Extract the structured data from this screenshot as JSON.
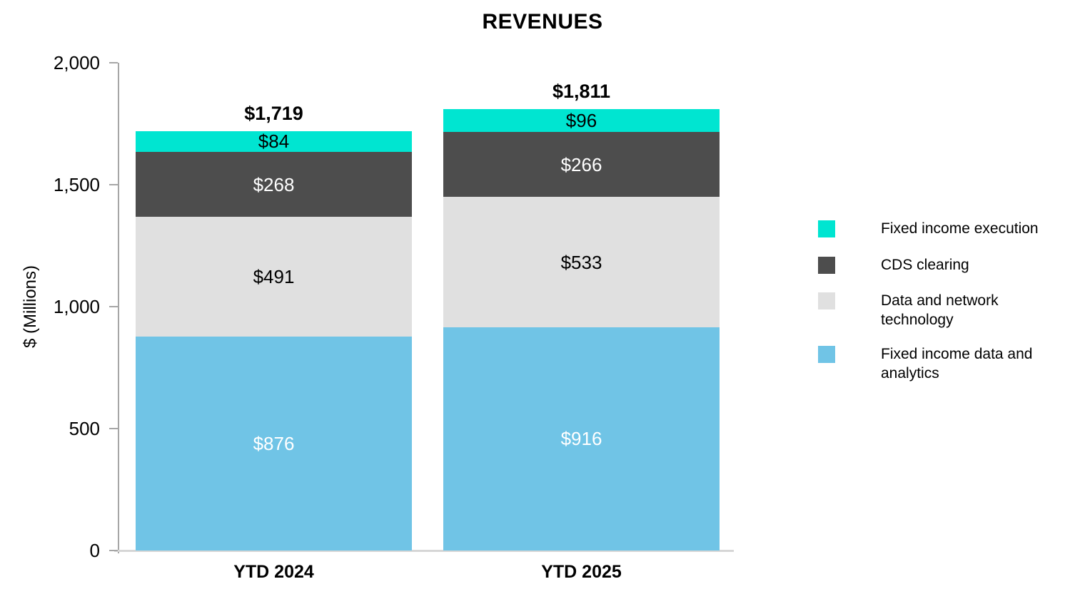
{
  "chart_data": {
    "type": "bar",
    "stacked": true,
    "title": "REVENUES",
    "ylabel": "$ (Millions)",
    "xlabel": "",
    "ylim": [
      0,
      2000
    ],
    "grid": false,
    "legend_position": "right",
    "categories": [
      "YTD 2024",
      "YTD 2025"
    ],
    "totals": [
      1719,
      1811
    ],
    "total_labels": [
      "$1,719",
      "$1,811"
    ],
    "y_ticks": [
      {
        "value": 0,
        "label": "0"
      },
      {
        "value": 500,
        "label": "500"
      },
      {
        "value": 1000,
        "label": "1,000"
      },
      {
        "value": 1500,
        "label": "1,500"
      },
      {
        "value": 2000,
        "label": "2,000"
      }
    ],
    "series": [
      {
        "name": "Fixed income data and analytics",
        "color": "#70c4e6",
        "label_color": "#ffffff",
        "values": [
          876,
          916
        ],
        "labels": [
          "$876",
          "$916"
        ]
      },
      {
        "name": "Data and network technology",
        "color": "#e0e0e0",
        "label_color": "#000000",
        "values": [
          491,
          533
        ],
        "labels": [
          "$491",
          "$533"
        ]
      },
      {
        "name": "CDS clearing",
        "color": "#4d4d4d",
        "label_color": "#ffffff",
        "values": [
          268,
          266
        ],
        "labels": [
          "$268",
          "$266"
        ]
      },
      {
        "name": "Fixed income execution",
        "color": "#00e5d1",
        "label_color": "#000000",
        "values": [
          84,
          96
        ],
        "labels": [
          "$84",
          "$96"
        ]
      }
    ],
    "legend": [
      {
        "label": "Fixed income execution",
        "color": "#00e5d1"
      },
      {
        "label": "CDS clearing",
        "color": "#4d4d4d"
      },
      {
        "label": "Data and network technology",
        "color": "#e0e0e0"
      },
      {
        "label": "Fixed income data and analytics",
        "color": "#70c4e6"
      }
    ],
    "colors": {
      "axis_line": "#a6a6a6",
      "baseline": "#d6d6d6",
      "title_text": "#000000"
    }
  }
}
